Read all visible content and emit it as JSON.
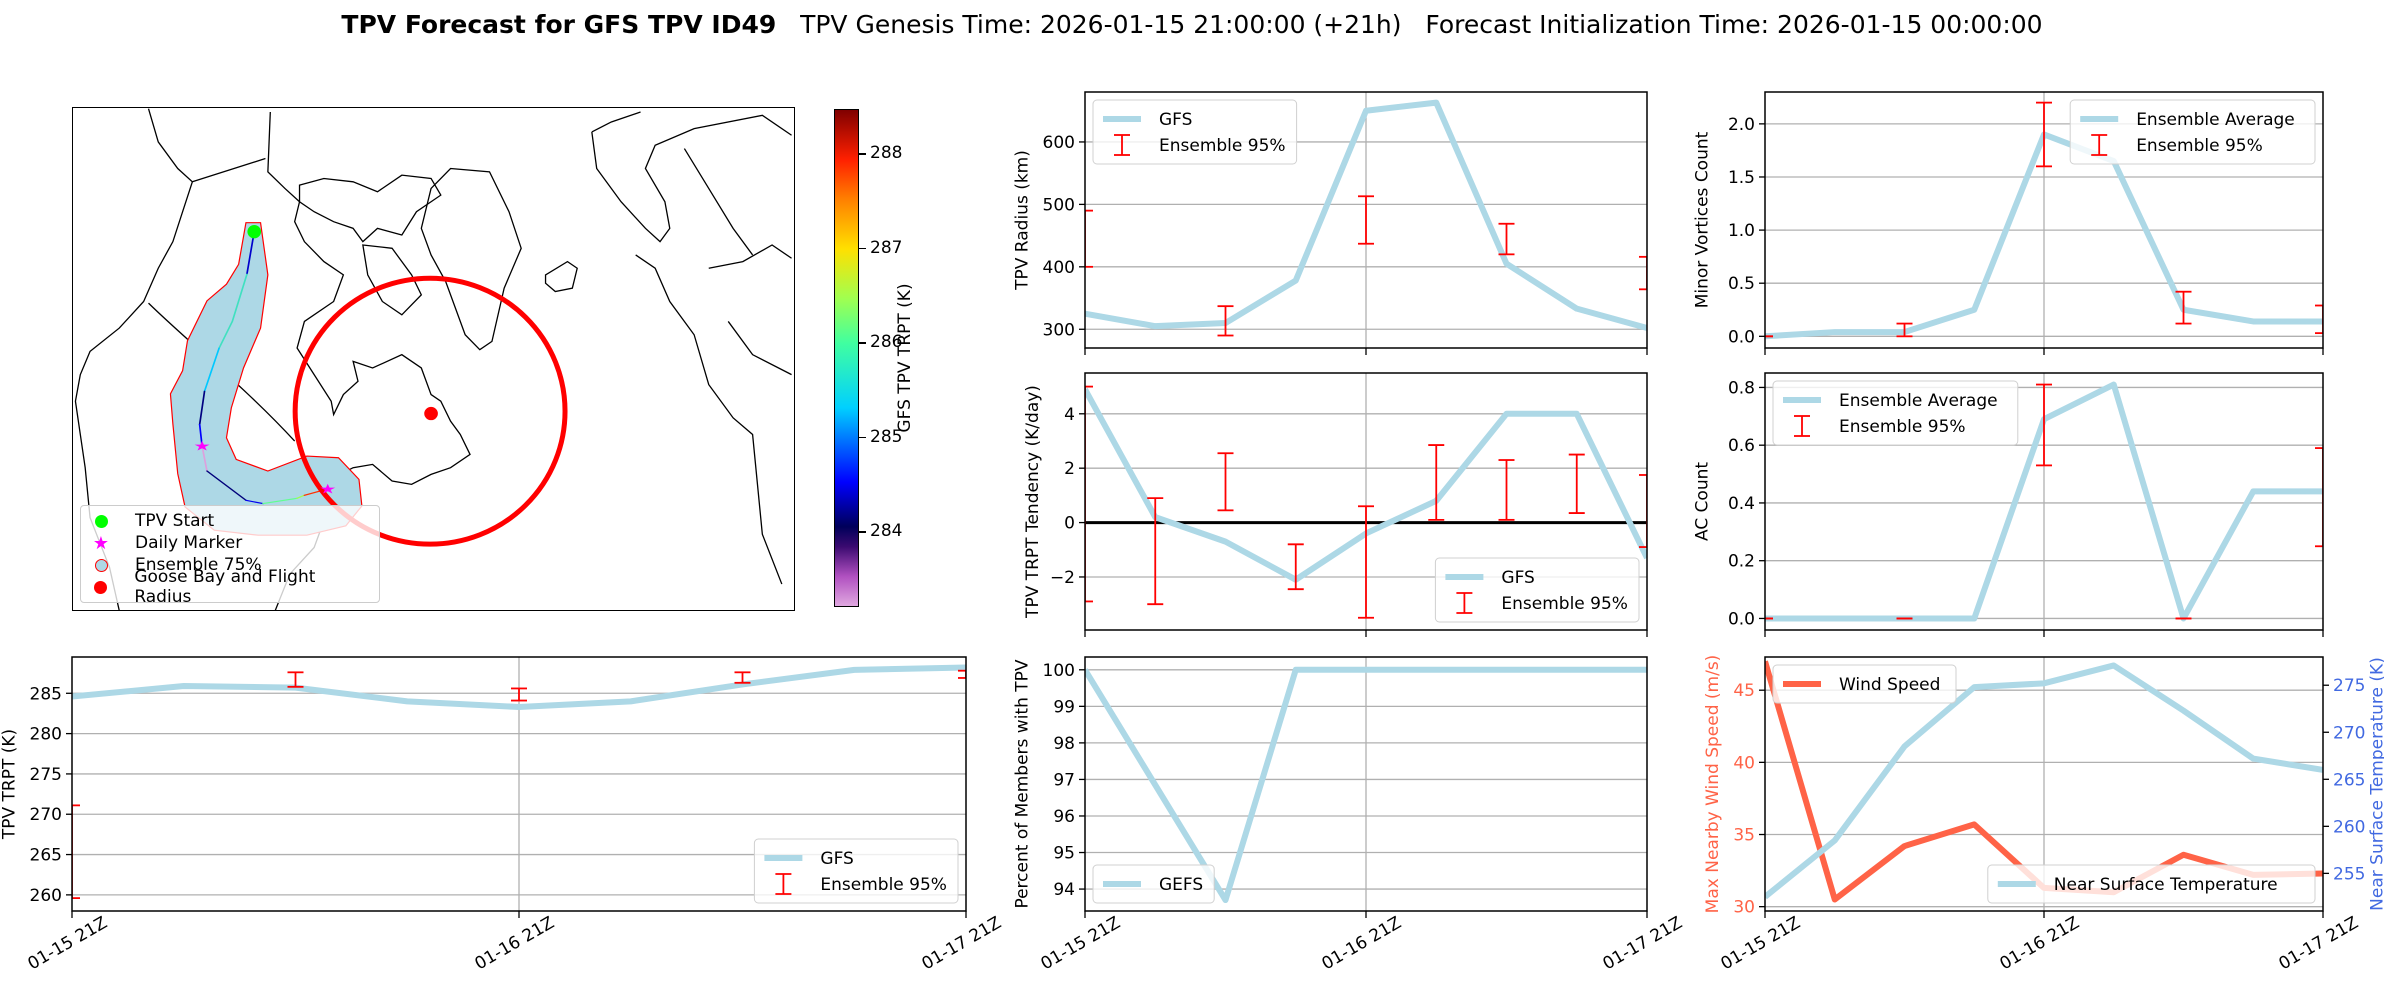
{
  "title": {
    "bold": "TPV Forecast for GFS TPV ID49",
    "rest": "   TPV Genesis Time: 2026-01-15 21:00:00 (+21h)   Forecast Initialization Time: 2026-01-15 00:00:00"
  },
  "map": {
    "legend": [
      "TPV Start",
      "Daily Marker",
      "Ensemble 75%",
      "Goose Bay and Flight Radius"
    ],
    "colorbar": {
      "label": "GFS TPV TRPT (K)",
      "vmin": 283.2,
      "vmax": 288.47,
      "ticks": [
        284,
        285,
        286,
        287,
        288
      ],
      "tick_labels": [
        "284",
        "285",
        "286",
        "287",
        "288"
      ]
    },
    "colors": {
      "start": "#00ff00",
      "daily": "#ff00ff",
      "ensemble_fill": "#add8e6",
      "ensemble_edge": "#ff0000",
      "goose_bay": "#ff0000"
    }
  },
  "chart_data": [
    {
      "type": "line",
      "ylabel": "TPV Radius (km)",
      "xlim": [
        0,
        48
      ],
      "ylim": [
        270,
        680
      ],
      "yticks": [
        300,
        400,
        500,
        600
      ],
      "ytick_labels": [
        "300",
        "400",
        "500",
        "600"
      ],
      "xticks": [
        0,
        24,
        48
      ],
      "xtick_labels": null,
      "series": [
        {
          "name": "GFS",
          "x": [
            0,
            6,
            12,
            18,
            24,
            30,
            36,
            42,
            48
          ],
          "y": [
            325,
            305,
            310,
            378,
            650,
            663,
            405,
            333,
            302
          ],
          "color": "#add8e6"
        }
      ],
      "errorbars": {
        "name": "Ensemble 95%",
        "x": [
          0,
          12,
          24,
          36,
          48
        ],
        "low": [
          400,
          290,
          437,
          420,
          364
        ],
        "high": [
          490,
          337,
          513,
          469,
          416
        ],
        "color": "#ff0000"
      },
      "legends": [
        {
          "loc": "upper left",
          "entries": [
            {
              "label": "GFS",
              "kind": "line",
              "color": "#add8e6"
            },
            {
              "label": "Ensemble 95%",
              "kind": "errorbar",
              "color": "#ff0000"
            }
          ]
        }
      ]
    },
    {
      "type": "line",
      "ylabel": "Minor Vortices Count",
      "xlim": [
        0,
        48
      ],
      "ylim": [
        -0.11,
        2.3
      ],
      "yticks": [
        0,
        0.5,
        1,
        1.5,
        2
      ],
      "ytick_labels": [
        "0.0",
        "0.5",
        "1.0",
        "1.5",
        "2.0"
      ],
      "xticks": [
        0,
        24,
        48
      ],
      "xtick_labels": null,
      "series": [
        {
          "name": "Ensemble Average",
          "x": [
            0,
            6,
            12,
            18,
            24,
            30,
            36,
            42,
            48
          ],
          "y": [
            0,
            0.04,
            0.04,
            0.25,
            1.9,
            1.65,
            0.25,
            0.14,
            0.14
          ],
          "color": "#add8e6"
        }
      ],
      "errorbars": {
        "name": "Ensemble 95%",
        "x": [
          0,
          12,
          24,
          36,
          48
        ],
        "low": [
          0,
          0,
          1.6,
          0.12,
          0.03
        ],
        "high": [
          0,
          0.12,
          2.2,
          0.42,
          0.29
        ],
        "color": "#ff0000"
      },
      "legends": [
        {
          "loc": "upper right",
          "entries": [
            {
              "label": "Ensemble Average",
              "kind": "line",
              "color": "#add8e6"
            },
            {
              "label": "Ensemble 95%",
              "kind": "errorbar",
              "color": "#ff0000"
            }
          ]
        }
      ]
    },
    {
      "type": "line",
      "ylabel": "TPV TRPT Tendency (K/day)",
      "xlim": [
        0,
        48
      ],
      "ylim": [
        -3.95,
        5.5
      ],
      "yticks": [
        -2,
        0,
        2,
        4
      ],
      "ytick_labels": [
        "−2",
        "0",
        "2",
        "4"
      ],
      "xticks": [
        0,
        24,
        48
      ],
      "xtick_labels": null,
      "zero_line": true,
      "series": [
        {
          "name": "GFS",
          "x": [
            0,
            6,
            12,
            18,
            24,
            30,
            36,
            42,
            48
          ],
          "y": [
            4.9,
            0.2,
            -0.7,
            -2.1,
            -0.4,
            0.8,
            4.0,
            4.0,
            -1.3
          ],
          "color": "#add8e6"
        }
      ],
      "errorbars": {
        "name": "Ensemble 95%",
        "x": [
          0,
          6,
          12,
          18,
          24,
          30,
          36,
          42,
          48
        ],
        "low": [
          -2.9,
          -3.0,
          0.45,
          -2.45,
          -3.5,
          0.1,
          0.1,
          0.35,
          -0.9
        ],
        "high": [
          5.0,
          0.9,
          2.55,
          -0.8,
          0.6,
          2.85,
          2.3,
          2.5,
          1.75
        ],
        "color": "#ff0000"
      },
      "legends": [
        {
          "loc": "lower right",
          "entries": [
            {
              "label": "GFS",
              "kind": "line",
              "color": "#add8e6"
            },
            {
              "label": "Ensemble 95%",
              "kind": "errorbar",
              "color": "#ff0000"
            }
          ]
        }
      ]
    },
    {
      "type": "line",
      "ylabel": "AC Count",
      "xlim": [
        0,
        48
      ],
      "ylim": [
        -0.04,
        0.85
      ],
      "yticks": [
        0,
        0.2,
        0.4,
        0.6,
        0.8
      ],
      "ytick_labels": [
        "0.0",
        "0.2",
        "0.4",
        "0.6",
        "0.8"
      ],
      "xticks": [
        0,
        24,
        48
      ],
      "xtick_labels": null,
      "series": [
        {
          "name": "Ensemble Average",
          "x": [
            0,
            6,
            12,
            18,
            24,
            30,
            36,
            42,
            48
          ],
          "y": [
            0,
            0,
            0,
            0,
            0.69,
            0.81,
            0,
            0.44,
            0.44
          ],
          "color": "#add8e6"
        }
      ],
      "errorbars": {
        "name": "Ensemble 95%",
        "x": [
          0,
          12,
          24,
          36,
          48
        ],
        "low": [
          0,
          0,
          0.53,
          0,
          0.25
        ],
        "high": [
          0,
          0,
          0.81,
          0,
          0.59
        ],
        "color": "#ff0000"
      },
      "legends": [
        {
          "loc": "upper left",
          "entries": [
            {
              "label": "Ensemble Average",
              "kind": "line",
              "color": "#add8e6"
            },
            {
              "label": "Ensemble 95%",
              "kind": "errorbar",
              "color": "#ff0000"
            }
          ]
        }
      ]
    },
    {
      "type": "line",
      "ylabel": "TPV TRPT (K)",
      "xlim": [
        0,
        48
      ],
      "ylim": [
        258,
        289.5
      ],
      "yticks": [
        260,
        265,
        270,
        275,
        280,
        285
      ],
      "ytick_labels": [
        "260",
        "265",
        "270",
        "275",
        "280",
        "285"
      ],
      "xticks": [
        0,
        24,
        48
      ],
      "xtick_labels": [
        "01-15 21Z",
        "01-16 21Z",
        "01-17 21Z"
      ],
      "series": [
        {
          "name": "GFS",
          "x": [
            0,
            6,
            12,
            18,
            24,
            30,
            36,
            42,
            48
          ],
          "y": [
            284.6,
            285.9,
            285.7,
            284.0,
            283.3,
            284.0,
            286.1,
            287.9,
            288.2
          ],
          "color": "#add8e6"
        }
      ],
      "errorbars": {
        "name": "Ensemble 95%",
        "x": [
          0,
          12,
          24,
          36,
          48
        ],
        "low": [
          259.6,
          285.8,
          284.1,
          286.3,
          286.9
        ],
        "high": [
          271.1,
          287.6,
          285.6,
          287.6,
          287.8
        ],
        "color": "#ff0000"
      },
      "legends": [
        {
          "loc": "lower right",
          "entries": [
            {
              "label": "GFS",
              "kind": "line",
              "color": "#add8e6"
            },
            {
              "label": "Ensemble 95%",
              "kind": "errorbar",
              "color": "#ff0000"
            }
          ]
        }
      ]
    },
    {
      "type": "line",
      "ylabel": "Percent of Members with TPV",
      "xlim": [
        0,
        48
      ],
      "ylim": [
        93.4,
        100.35
      ],
      "yticks": [
        94,
        95,
        96,
        97,
        98,
        99,
        100
      ],
      "ytick_labels": [
        "94",
        "95",
        "96",
        "97",
        "98",
        "99",
        "100"
      ],
      "xticks": [
        0,
        24,
        48
      ],
      "xtick_labels": [
        "01-15 21Z",
        "01-16 21Z",
        "01-17 21Z"
      ],
      "series": [
        {
          "name": "GEFS",
          "x": [
            0,
            6,
            12,
            18,
            24,
            30,
            36,
            42,
            48
          ],
          "y": [
            100,
            96.85,
            93.7,
            100,
            100,
            100,
            100,
            100,
            100
          ],
          "color": "#add8e6"
        }
      ],
      "errorbars": null,
      "legends": [
        {
          "loc": "lower left",
          "entries": [
            {
              "label": "GEFS",
              "kind": "line",
              "color": "#add8e6"
            }
          ]
        }
      ]
    },
    {
      "type": "line",
      "ylabel": "Max Nearby Wind Speed (m/s)",
      "ylabel_color": "#ff6347",
      "ylabel_right": "Near Surface Temperature (K)",
      "ylabel_right_color": "#4169e1",
      "xlim": [
        0,
        48
      ],
      "ylim": [
        29.7,
        47.3
      ],
      "ylim_right": [
        251,
        278
      ],
      "yticks": [
        30,
        35,
        40,
        45
      ],
      "ytick_labels": [
        "30",
        "35",
        "40",
        "45"
      ],
      "yticks_right": [
        255,
        260,
        265,
        270,
        275
      ],
      "ytick_labels_right": [
        "255",
        "260",
        "265",
        "270",
        "275"
      ],
      "xticks": [
        0,
        24,
        48
      ],
      "xtick_labels": [
        "01-15 21Z",
        "01-16 21Z",
        "01-17 21Z"
      ],
      "series": [
        {
          "name": "Wind Speed",
          "axis": "left",
          "x": [
            0,
            6,
            12,
            18,
            24,
            30,
            36,
            42,
            48
          ],
          "y": [
            47,
            30.5,
            34.2,
            35.7,
            31.3,
            31.0,
            33.6,
            32.2,
            32.3
          ],
          "color": "#ff6347"
        },
        {
          "name": "Near Surface Temperature",
          "axis": "right",
          "x": [
            0,
            6,
            12,
            18,
            24,
            30,
            36,
            42,
            48
          ],
          "y": [
            252.5,
            258.5,
            268.5,
            274.8,
            275.2,
            277.1,
            272.3,
            267.2,
            266.0
          ],
          "color": "#add8e6"
        }
      ],
      "errorbars": null,
      "legends": [
        {
          "loc": "upper left",
          "entries": [
            {
              "label": "Wind Speed",
              "kind": "line",
              "color": "#ff6347"
            }
          ]
        },
        {
          "loc": "lower right",
          "entries": [
            {
              "label": "Near Surface Temperature",
              "kind": "line",
              "color": "#add8e6"
            }
          ]
        }
      ]
    }
  ]
}
